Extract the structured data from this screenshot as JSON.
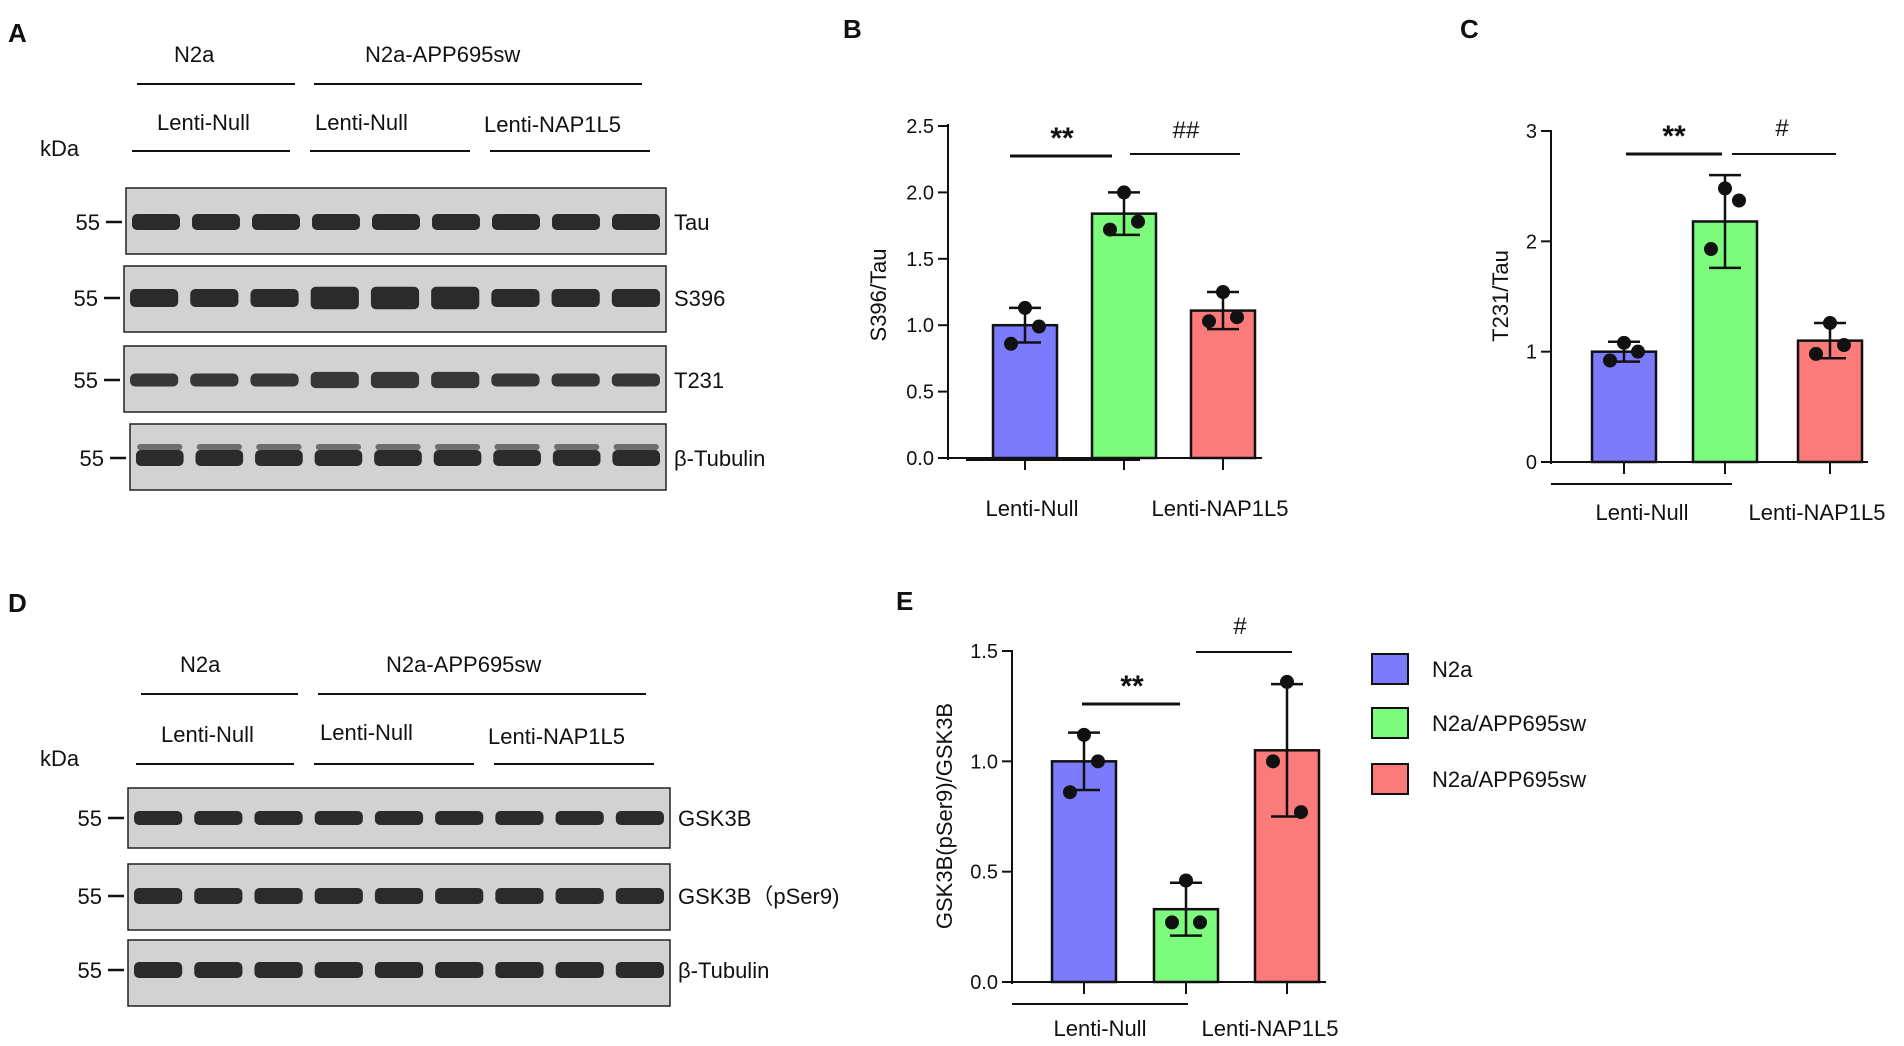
{
  "colors": {
    "n2a": "#7b7bfb",
    "app": "#7dfb7d",
    "nap": "#fb7b7b",
    "band": "#1c1c1c",
    "blot_bg": "#d2d2d2"
  },
  "western_blots": [
    {
      "panel": "A",
      "groups": [
        "N2a",
        "N2a-APP695sw"
      ],
      "treatments": [
        "Lenti-Null",
        "Lenti-Null",
        "Lenti-NAP1L5"
      ],
      "kda_label": "kDa",
      "strips": [
        {
          "marker": "55",
          "label": "Tau"
        },
        {
          "marker": "55",
          "label": "S396"
        },
        {
          "marker": "55",
          "label": "T231"
        },
        {
          "marker": "55",
          "label": "β-Tubulin"
        }
      ]
    },
    {
      "panel": "D",
      "groups": [
        "N2a",
        "N2a-APP695sw"
      ],
      "treatments": [
        "Lenti-Null",
        "Lenti-Null",
        "Lenti-NAP1L5"
      ],
      "kda_label": "kDa",
      "strips": [
        {
          "marker": "55",
          "label": "GSK3B"
        },
        {
          "marker": "55",
          "label": "GSK3B（pSer9)"
        },
        {
          "marker": "55",
          "label": "β-Tubulin"
        }
      ]
    }
  ],
  "chart_data": [
    {
      "panel": "B",
      "type": "bar",
      "categories": [
        "N2a",
        "N2a/APP695sw",
        "N2a/APP695sw"
      ],
      "values": [
        1.0,
        1.84,
        1.11
      ],
      "errors": [
        0.13,
        0.16,
        0.14
      ],
      "points": [
        [
          1.13,
          0.86,
          0.99
        ],
        [
          2.0,
          1.72,
          1.78
        ],
        [
          1.25,
          1.03,
          1.06
        ]
      ],
      "ylabel": "S396/Tau",
      "ylim": [
        0,
        2.5
      ],
      "yticks": [
        "0.0",
        "0.5",
        "1.0",
        "1.5",
        "2.0",
        "2.5"
      ],
      "x_groups": [
        "Lenti-Null",
        "Lenti-NAP1L5"
      ],
      "significance": [
        "**",
        "##"
      ]
    },
    {
      "panel": "C",
      "type": "bar",
      "categories": [
        "N2a",
        "N2a/APP695sw",
        "N2a/APP695sw"
      ],
      "values": [
        1.0,
        2.18,
        1.1
      ],
      "errors": [
        0.09,
        0.42,
        0.16
      ],
      "points": [
        [
          1.08,
          0.92,
          1.0
        ],
        [
          2.48,
          1.93,
          2.37
        ],
        [
          1.26,
          0.98,
          1.06
        ]
      ],
      "ylabel": "T231/Tau",
      "ylim": [
        0,
        3
      ],
      "yticks": [
        "0",
        "1",
        "2",
        "3"
      ],
      "x_groups": [
        "Lenti-Null",
        "Lenti-NAP1L5"
      ],
      "significance": [
        "**",
        "#"
      ]
    },
    {
      "panel": "E",
      "type": "bar",
      "categories": [
        "N2a",
        "N2a/APP695sw",
        "N2a/APP695sw"
      ],
      "values": [
        1.0,
        0.33,
        1.05
      ],
      "errors": [
        0.13,
        0.12,
        0.3
      ],
      "points": [
        [
          1.12,
          0.86,
          1.0
        ],
        [
          0.46,
          0.27,
          0.27
        ],
        [
          1.36,
          1.0,
          0.77
        ]
      ],
      "ylabel": "GSK3B(pSer9)/GSK3B",
      "ylim": [
        0,
        1.5
      ],
      "yticks": [
        "0.0",
        "0.5",
        "1.0",
        "1.5"
      ],
      "x_groups": [
        "Lenti-Null",
        "Lenti-NAP1L5"
      ],
      "significance": [
        "**",
        "#"
      ],
      "legend": [
        "N2a",
        "N2a/APP695sw",
        "N2a/APP695sw"
      ],
      "legend_placement": "right"
    }
  ]
}
